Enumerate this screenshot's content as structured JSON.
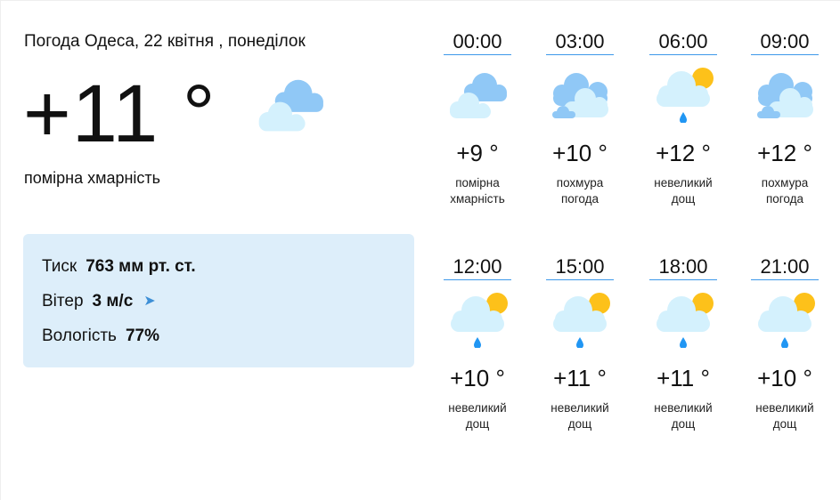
{
  "current": {
    "title": "Погода Одеса, 22 квітня , понеділок",
    "temperature": "+11 °",
    "condition": "помірна хмарність",
    "icon": "partly-cloudy"
  },
  "details": {
    "pressure_label": "Тиск",
    "pressure_value": "763 мм рт. ст.",
    "wind_label": "Вітер",
    "wind_value": "3 м/с",
    "wind_icon": "wind-direction-arrow-icon",
    "humidity_label": "Вологість",
    "humidity_value": "77%"
  },
  "colors": {
    "accent": "#3d98ea",
    "panel": "#ddeefa",
    "sun": "#fdc11a",
    "drop": "#2196f3"
  },
  "hours": [
    {
      "time": "00:00",
      "temp": "+9 °",
      "desc1": "помірна",
      "desc2": "хмарність",
      "icon": "partly-cloudy"
    },
    {
      "time": "03:00",
      "temp": "+10 °",
      "desc1": "похмура",
      "desc2": "погода",
      "icon": "overcast"
    },
    {
      "time": "06:00",
      "temp": "+12 °",
      "desc1": "невеликий",
      "desc2": "дощ",
      "icon": "light-rain"
    },
    {
      "time": "09:00",
      "temp": "+12 °",
      "desc1": "похмура",
      "desc2": "погода",
      "icon": "overcast"
    },
    {
      "time": "12:00",
      "temp": "+10 °",
      "desc1": "невеликий",
      "desc2": "дощ",
      "icon": "light-rain"
    },
    {
      "time": "15:00",
      "temp": "+11 °",
      "desc1": "невеликий",
      "desc2": "дощ",
      "icon": "light-rain"
    },
    {
      "time": "18:00",
      "temp": "+11 °",
      "desc1": "невеликий",
      "desc2": "дощ",
      "icon": "light-rain"
    },
    {
      "time": "21:00",
      "temp": "+10 °",
      "desc1": "невеликий",
      "desc2": "дощ",
      "icon": "light-rain"
    }
  ]
}
